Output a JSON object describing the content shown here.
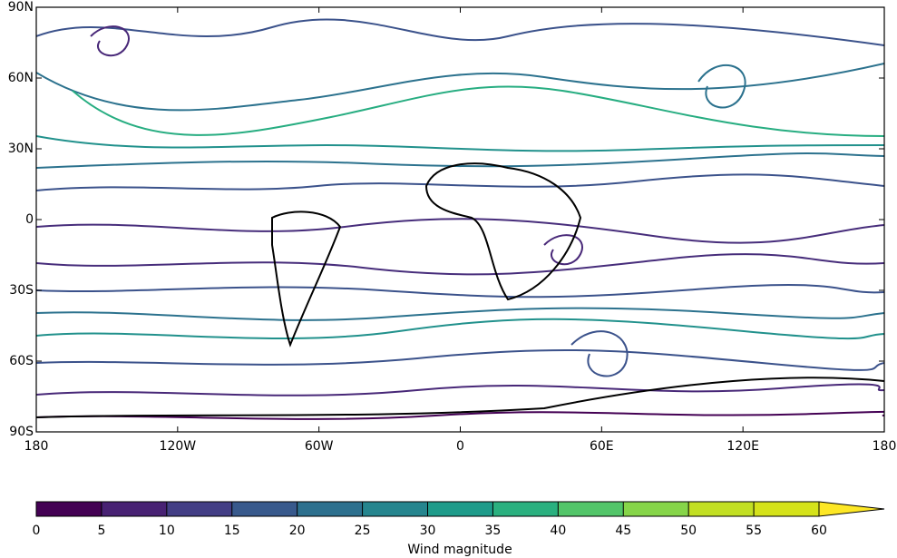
{
  "chart_data": {
    "type": "streamplot",
    "xlim": [
      -180,
      180
    ],
    "ylim": [
      -90,
      90
    ],
    "xticks": [
      {
        "value": -180,
        "label": "180"
      },
      {
        "value": -120,
        "label": "120W"
      },
      {
        "value": -60,
        "label": "60W"
      },
      0,
      {
        "value": 60,
        "label": "60E"
      },
      {
        "value": 120,
        "label": "120E"
      },
      {
        "value": 180,
        "label": "180"
      }
    ],
    "yticks": [
      {
        "value": 90,
        "label": "90N"
      },
      {
        "value": 60,
        "label": "60N"
      },
      {
        "value": 30,
        "label": "30N"
      },
      0,
      {
        "value": -30,
        "label": "30S"
      },
      {
        "value": -60,
        "label": "60S"
      },
      {
        "value": -90,
        "label": "90S"
      }
    ],
    "colorbar": {
      "label": "Wind magnitude",
      "ticks": [
        0,
        5,
        10,
        15,
        20,
        25,
        30,
        35,
        40,
        45,
        50,
        55,
        60
      ],
      "colors": [
        "#440154",
        "#482173",
        "#433e85",
        "#38598c",
        "#2d708e",
        "#25858e",
        "#1e9b8a",
        "#2ab07f",
        "#52c569",
        "#86d549",
        "#c2df23",
        "#d5e21a"
      ],
      "extend_color": "#fde725"
    }
  }
}
